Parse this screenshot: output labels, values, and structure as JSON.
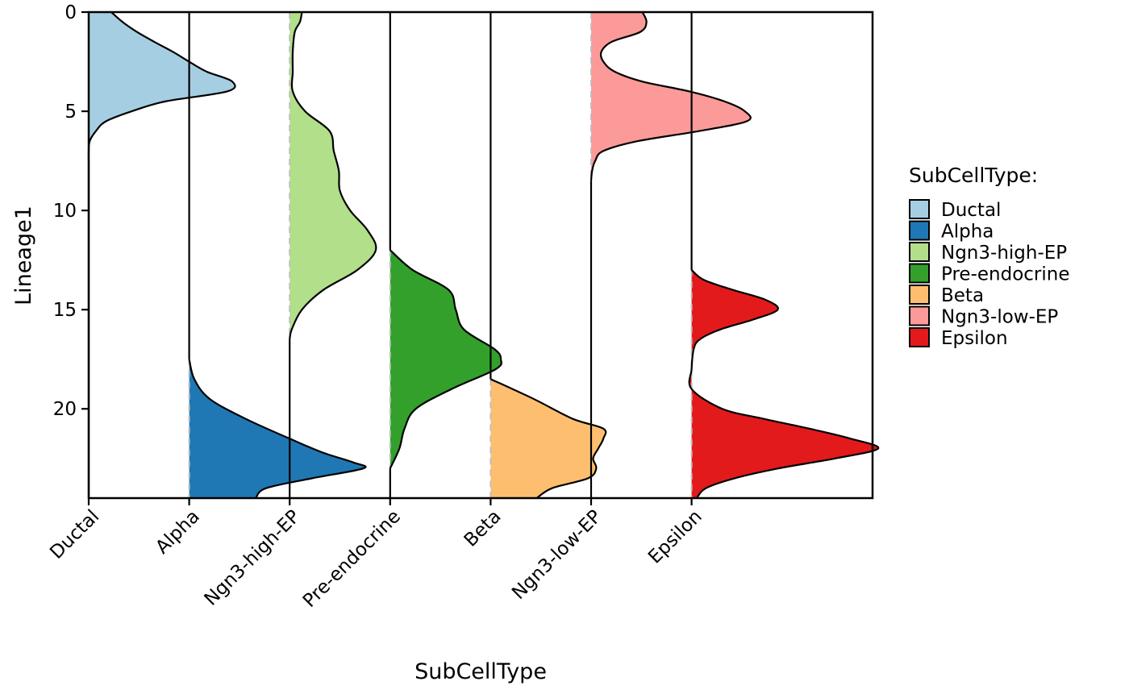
{
  "chart_data": {
    "type": "violin",
    "orientation": "horizontal densities along a vertical axis",
    "xlabel": "SubCellType",
    "ylabel": "Lineage1",
    "ylim": [
      0,
      24.5
    ],
    "y_reversed": true,
    "y_ticks": [
      0,
      5,
      10,
      15,
      20
    ],
    "categories": [
      "Ductal",
      "Alpha",
      "Ngn3-high-EP",
      "Pre-endocrine",
      "Beta",
      "Ngn3-low-EP",
      "Epsilon"
    ],
    "x_tick_label_angle": 45,
    "density_unit_width": 1.8,
    "series": [
      {
        "name": "Ductal",
        "color": "#A6CEE3",
        "density": [
          [
            0,
            0.22
          ],
          [
            0.5,
            0.33
          ],
          [
            1,
            0.47
          ],
          [
            1.5,
            0.64
          ],
          [
            2,
            0.82
          ],
          [
            2.5,
            0.98
          ],
          [
            3,
            1.15
          ],
          [
            3.5,
            1.4
          ],
          [
            4,
            1.35
          ],
          [
            4.5,
            0.75
          ],
          [
            5,
            0.42
          ],
          [
            5.5,
            0.17
          ],
          [
            6,
            0.07
          ],
          [
            6.5,
            0.01
          ],
          [
            7,
            0.0
          ],
          [
            7.5,
            0.0
          ]
        ]
      },
      {
        "name": "Alpha",
        "color": "#1F78B4",
        "density": [
          [
            17.5,
            0.0
          ],
          [
            18.5,
            0.05
          ],
          [
            19.5,
            0.2
          ],
          [
            20.5,
            0.55
          ],
          [
            21.5,
            0.98
          ],
          [
            22.2,
            1.3
          ],
          [
            22.7,
            1.6
          ],
          [
            23.0,
            1.7
          ],
          [
            23.5,
            1.2
          ],
          [
            24.0,
            0.75
          ],
          [
            24.5,
            0.65
          ]
        ]
      },
      {
        "name": "Ngn3-high-EP",
        "color": "#B2DF8A",
        "density": [
          [
            0,
            0.12
          ],
          [
            0.5,
            0.1
          ],
          [
            1,
            0.05
          ],
          [
            2,
            0.03
          ],
          [
            3,
            0.03
          ],
          [
            4,
            0.03
          ],
          [
            5,
            0.15
          ],
          [
            6,
            0.39
          ],
          [
            7,
            0.43
          ],
          [
            8,
            0.48
          ],
          [
            9,
            0.49
          ],
          [
            10,
            0.59
          ],
          [
            11,
            0.76
          ],
          [
            12,
            0.84
          ],
          [
            13,
            0.66
          ],
          [
            14,
            0.33
          ],
          [
            15,
            0.12
          ],
          [
            16,
            0.02
          ],
          [
            16.5,
            0.0
          ]
        ]
      },
      {
        "name": "Pre-endocrine",
        "color": "#33A02C",
        "density": [
          [
            12,
            0.0
          ],
          [
            13,
            0.22
          ],
          [
            14,
            0.57
          ],
          [
            15,
            0.64
          ],
          [
            16,
            0.72
          ],
          [
            17,
            1.02
          ],
          [
            17.5,
            1.08
          ],
          [
            18,
            1.03
          ],
          [
            19,
            0.6
          ],
          [
            20,
            0.25
          ],
          [
            21,
            0.14
          ],
          [
            22,
            0.09
          ],
          [
            23,
            0.0
          ]
        ]
      },
      {
        "name": "Beta",
        "color": "#FDBF6F",
        "density": [
          [
            18.5,
            0.0
          ],
          [
            19.5,
            0.42
          ],
          [
            20.5,
            0.8
          ],
          [
            21,
            1.1
          ],
          [
            21.5,
            1.1
          ],
          [
            22,
            1.05
          ],
          [
            22.5,
            1.0
          ],
          [
            23,
            1.03
          ],
          [
            23.5,
            0.95
          ],
          [
            24,
            0.6
          ],
          [
            24.5,
            0.45
          ]
        ]
      },
      {
        "name": "Ngn3-low-EP",
        "color": "#FB9A99",
        "density": [
          [
            0,
            0.5
          ],
          [
            0.5,
            0.54
          ],
          [
            1,
            0.48
          ],
          [
            1.5,
            0.2
          ],
          [
            2,
            0.1
          ],
          [
            2.5,
            0.12
          ],
          [
            3,
            0.23
          ],
          [
            3.5,
            0.5
          ],
          [
            4,
            0.96
          ],
          [
            4.5,
            1.3
          ],
          [
            5,
            1.5
          ],
          [
            5.5,
            1.52
          ],
          [
            6,
            1.05
          ],
          [
            6.5,
            0.46
          ],
          [
            7,
            0.12
          ],
          [
            7.5,
            0.04
          ],
          [
            8,
            0.01
          ],
          [
            8.5,
            0.0
          ]
        ]
      },
      {
        "name": "Epsilon",
        "color": "#E31A1C",
        "density": [
          [
            13,
            0.0
          ],
          [
            13.5,
            0.12
          ],
          [
            14,
            0.4
          ],
          [
            14.5,
            0.72
          ],
          [
            15,
            0.84
          ],
          [
            15.5,
            0.6
          ],
          [
            16,
            0.28
          ],
          [
            16.5,
            0.08
          ],
          [
            17,
            0.02
          ],
          [
            18,
            0.0
          ],
          [
            19,
            0.0
          ],
          [
            20,
            0.3
          ],
          [
            20.5,
            0.7
          ],
          [
            21,
            1.15
          ],
          [
            21.5,
            1.55
          ],
          [
            22,
            1.82
          ],
          [
            22.5,
            1.4
          ],
          [
            23,
            0.85
          ],
          [
            23.5,
            0.42
          ],
          [
            24,
            0.14
          ],
          [
            24.5,
            0.05
          ]
        ]
      }
    ]
  },
  "legend": {
    "title": "SubCellType:",
    "items": [
      {
        "label": "Ductal",
        "color": "#A6CEE3"
      },
      {
        "label": "Alpha",
        "color": "#1F78B4"
      },
      {
        "label": "Ngn3-high-EP",
        "color": "#B2DF8A"
      },
      {
        "label": "Pre-endocrine",
        "color": "#33A02C"
      },
      {
        "label": "Beta",
        "color": "#FDBF6F"
      },
      {
        "label": "Ngn3-low-EP",
        "color": "#FB9A99"
      },
      {
        "label": "Epsilon",
        "color": "#E31A1C"
      }
    ]
  }
}
